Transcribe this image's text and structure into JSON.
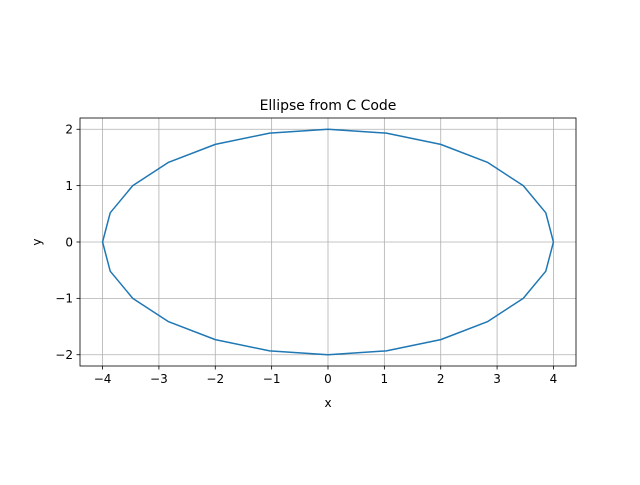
{
  "chart_data": {
    "type": "line",
    "title": "Ellipse from C Code",
    "xlabel": "x",
    "ylabel": "y",
    "xlim": [
      -4.4,
      4.4
    ],
    "ylim": [
      -2.2,
      2.2
    ],
    "xticks": [
      -4,
      -3,
      -2,
      -1,
      0,
      1,
      2,
      3,
      4
    ],
    "xtick_labels": [
      "−4",
      "−3",
      "−2",
      "−1",
      "0",
      "1",
      "2",
      "3",
      "4"
    ],
    "yticks": [
      -2,
      -1,
      0,
      1,
      2
    ],
    "ytick_labels": [
      "−2",
      "−1",
      "0",
      "1",
      "2"
    ],
    "grid": true,
    "series": [
      {
        "color": "#1f77b4",
        "x": [
          4.0,
          3.864,
          3.464,
          2.828,
          2.0,
          1.035,
          0.0,
          -1.035,
          -2.0,
          -2.828,
          -3.464,
          -3.864,
          -4.0,
          -3.864,
          -3.464,
          -2.828,
          -2.0,
          -1.035,
          0.0,
          1.035,
          2.0,
          2.828,
          3.464,
          3.864,
          4.0
        ],
        "y": [
          0.0,
          0.518,
          1.0,
          1.414,
          1.732,
          1.932,
          2.0,
          1.932,
          1.732,
          1.414,
          1.0,
          0.518,
          0.0,
          -0.518,
          -1.0,
          -1.414,
          -1.732,
          -1.932,
          -2.0,
          -1.932,
          -1.732,
          -1.414,
          -1.0,
          -0.518,
          0.0
        ]
      }
    ]
  },
  "colors": {
    "grid": "#b0b0b0",
    "axes": "#000000"
  }
}
